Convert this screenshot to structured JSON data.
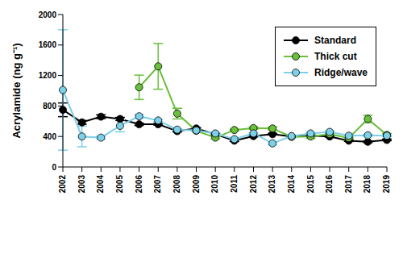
{
  "chart_data": {
    "type": "line",
    "y_label": "Acrylamide (ng g⁻¹)",
    "categories": [
      "2002",
      "2003",
      "2004",
      "2005",
      "2006",
      "2007",
      "2008",
      "2009",
      "2010",
      "2011",
      "2012",
      "2013",
      "2014",
      "2015",
      "2016",
      "2017",
      "2018",
      "2019"
    ],
    "ylim": [
      0,
      2000
    ],
    "yticks": [
      0,
      400,
      800,
      1200,
      1600,
      2000
    ],
    "grid": false,
    "legend": "upper right",
    "series": [
      {
        "name": "Standard",
        "color": "#000000",
        "marker": "circle",
        "values": [
          750,
          585,
          660,
          630,
          560,
          560,
          470,
          505,
          430,
          345,
          405,
          430,
          400,
          410,
          400,
          345,
          330,
          355
        ],
        "errors": [
          90,
          25,
          25,
          20,
          15,
          10,
          10,
          10,
          10,
          10,
          10,
          10,
          10,
          10,
          10,
          10,
          10,
          10
        ]
      },
      {
        "name": "Thick cut",
        "color": "#6abf3c",
        "marker": "circle",
        "values": [
          null,
          null,
          null,
          null,
          1045,
          1320,
          700,
          475,
          385,
          485,
          510,
          505,
          395,
          400,
          430,
          380,
          630,
          420
        ],
        "errors": [
          null,
          null,
          null,
          null,
          160,
          300,
          70,
          10,
          15,
          10,
          15,
          20,
          10,
          25,
          10,
          10,
          50,
          20
        ]
      },
      {
        "name": "Ridge/wave",
        "color": "#7ecfe8",
        "marker": "circle",
        "values": [
          1010,
          400,
          385,
          540,
          665,
          610,
          490,
          480,
          440,
          365,
          440,
          310,
          405,
          440,
          460,
          410,
          415,
          410
        ],
        "errors": [
          790,
          135,
          20,
          80,
          25,
          15,
          10,
          10,
          10,
          10,
          10,
          20,
          10,
          10,
          10,
          10,
          10,
          10
        ]
      }
    ]
  }
}
